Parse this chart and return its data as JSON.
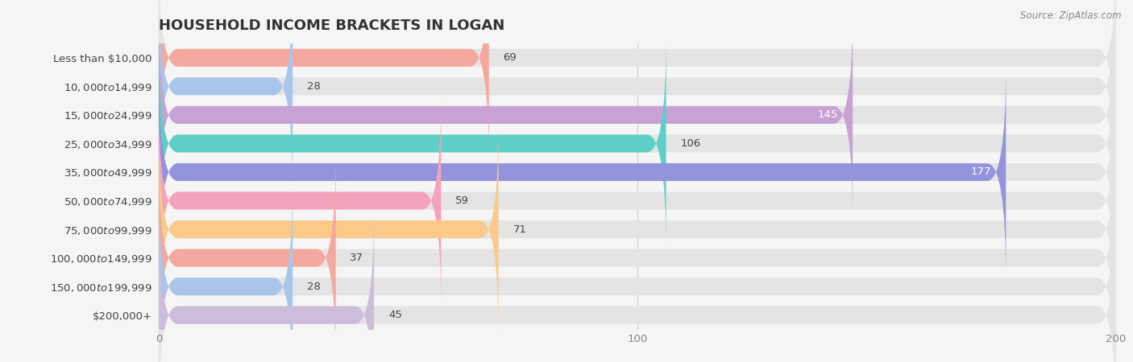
{
  "title": "HOUSEHOLD INCOME BRACKETS IN LOGAN",
  "source": "Source: ZipAtlas.com",
  "categories": [
    "Less than $10,000",
    "$10,000 to $14,999",
    "$15,000 to $24,999",
    "$25,000 to $34,999",
    "$35,000 to $49,999",
    "$50,000 to $74,999",
    "$75,000 to $99,999",
    "$100,000 to $149,999",
    "$150,000 to $199,999",
    "$200,000+"
  ],
  "values": [
    69,
    28,
    145,
    106,
    177,
    59,
    71,
    37,
    28,
    45
  ],
  "bar_colors": [
    "#f5a89e",
    "#aac5ea",
    "#c9a2d5",
    "#5ecfc7",
    "#9494dc",
    "#f5a2bc",
    "#f9ca8a",
    "#f5a89e",
    "#aac5ea",
    "#cdbcdc"
  ],
  "background_color": "#f5f5f5",
  "bar_background_color": "#e4e4e4",
  "xlim": [
    0,
    200
  ],
  "title_fontsize": 13,
  "label_fontsize": 9.5,
  "value_fontsize": 9.5,
  "bar_height": 0.62,
  "inside_label_threshold": 120,
  "grid_color": "#cccccc",
  "tick_label_color": "#888888",
  "value_color_outside": "#444444",
  "value_color_inside": "#ffffff",
  "title_color": "#333333",
  "source_color": "#888888",
  "ytick_color": "#444444"
}
